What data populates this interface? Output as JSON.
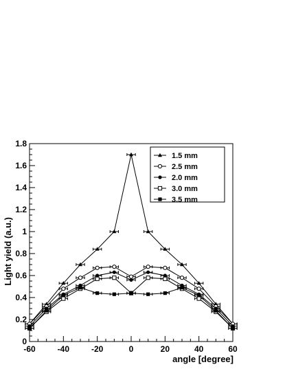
{
  "chart_data": {
    "type": "line",
    "title": "",
    "xlabel": "angle [degree]",
    "ylabel": "Light yield (a.u.)",
    "xlim": [
      -60,
      60
    ],
    "ylim": [
      0,
      1.8
    ],
    "xticks": [
      -60,
      -40,
      -20,
      0,
      20,
      40,
      60
    ],
    "yticks": [
      0,
      0.2,
      0.4,
      0.6,
      0.8,
      1,
      1.2,
      1.4,
      1.6,
      1.8
    ],
    "ytick_labels": [
      "0",
      "0.2",
      "0.4",
      "0.6",
      "0.8",
      "1",
      "1.2",
      "1.4",
      "1.6",
      "1.8"
    ],
    "x_error": 2.5,
    "legend_position": "top-right",
    "grid": false,
    "x": [
      -60,
      -50,
      -40,
      -30,
      -20,
      -10,
      0,
      10,
      20,
      30,
      40,
      50,
      60
    ],
    "series": [
      {
        "name": "1.5 mm",
        "marker": "filled-triangle",
        "values": [
          0.16,
          0.34,
          0.53,
          0.7,
          0.84,
          1.0,
          1.7,
          1.0,
          0.84,
          0.7,
          0.53,
          0.34,
          0.16
        ]
      },
      {
        "name": "2.5 mm",
        "marker": "open-circle",
        "values": [
          0.16,
          0.32,
          0.48,
          0.58,
          0.67,
          0.68,
          0.59,
          0.68,
          0.67,
          0.58,
          0.48,
          0.32,
          0.16
        ]
      },
      {
        "name": "2.0 mm",
        "marker": "filled-circle",
        "values": [
          0.14,
          0.3,
          0.43,
          0.51,
          0.6,
          0.63,
          0.56,
          0.63,
          0.6,
          0.51,
          0.43,
          0.3,
          0.14
        ]
      },
      {
        "name": "3.0 mm",
        "marker": "open-square",
        "values": [
          0.12,
          0.27,
          0.39,
          0.48,
          0.57,
          0.58,
          0.44,
          0.58,
          0.57,
          0.48,
          0.39,
          0.27,
          0.12
        ]
      },
      {
        "name": "3.5 mm",
        "marker": "filled-square",
        "values": [
          0.12,
          0.28,
          0.42,
          0.49,
          0.44,
          0.43,
          0.44,
          0.43,
          0.44,
          0.49,
          0.42,
          0.28,
          0.12
        ]
      }
    ]
  }
}
